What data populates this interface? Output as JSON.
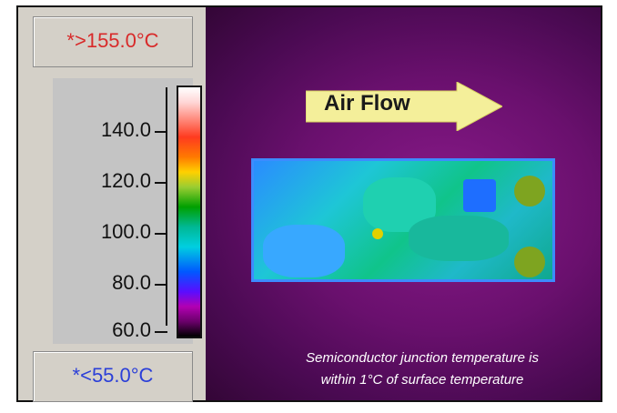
{
  "thermal_view": {
    "max_label": "*>155.0°C",
    "min_label": "*<55.0°C",
    "scale_ticks": [
      "140.0",
      "120.0",
      "100.0",
      "80.0",
      "60.0"
    ],
    "arrow_label": "Air Flow",
    "caption_line1": "Semiconductor junction temperature is",
    "caption_line2": "within 1°C of surface temperature"
  }
}
